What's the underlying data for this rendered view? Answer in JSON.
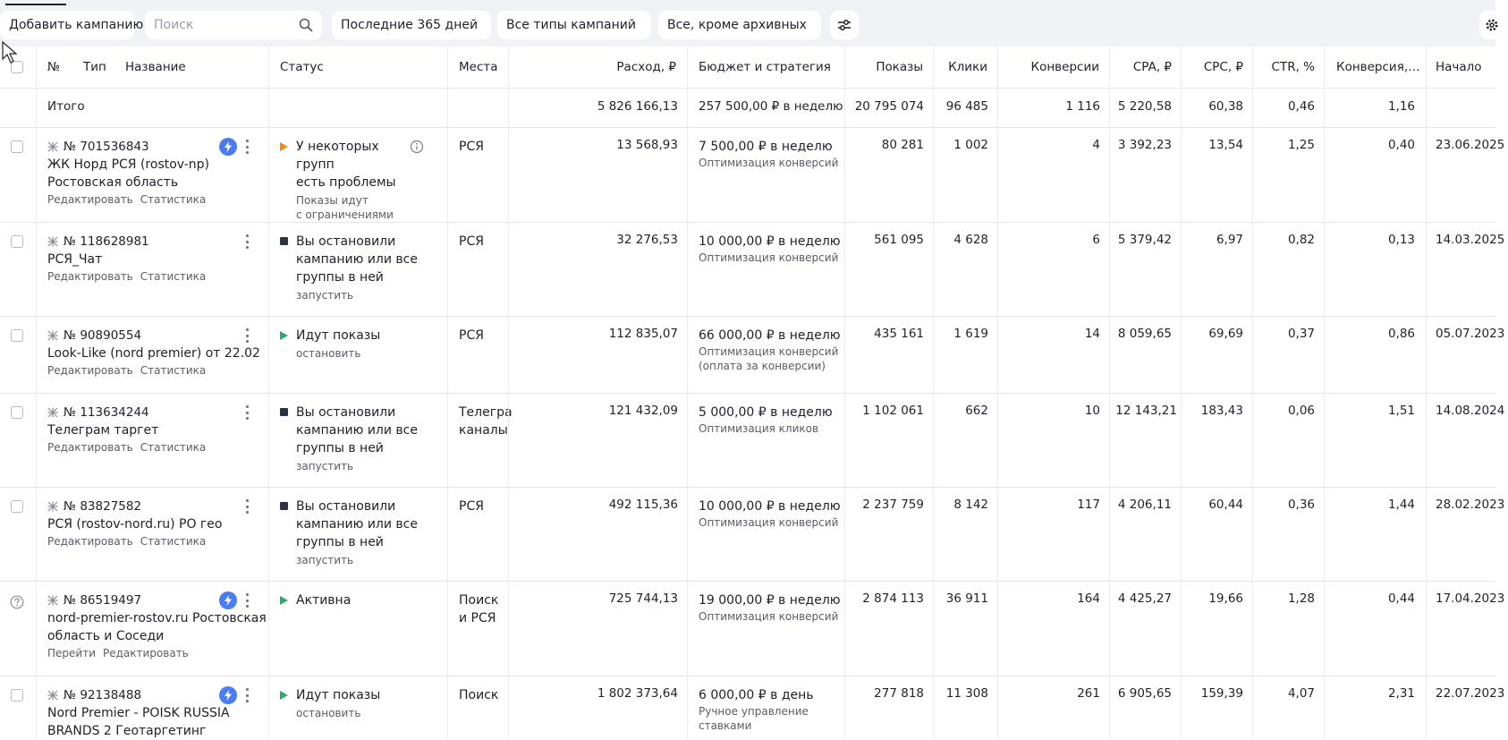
{
  "toolbar": {
    "add_campaign": "Добавить кампанию",
    "search_placeholder": "Поиск",
    "period": "Последние 365 дней",
    "types": "Все типы кампаний",
    "archive": "Все, кроме архивных"
  },
  "columns": {
    "num": "№",
    "type": "Тип",
    "name": "Название",
    "status": "Статус",
    "places": "Места",
    "spend": "Расход, ₽",
    "budget": "Бюджет и стратегия",
    "impressions": "Показы",
    "clicks": "Клики",
    "conversions": "Конверсии",
    "cpa": "CPA, ₽",
    "cpc": "CPC, ₽",
    "ctr": "CTR, %",
    "conv_rate": "Конверсия,…",
    "start": "Начало"
  },
  "totals": {
    "label": "Итого",
    "spend": "5 826 166,13",
    "budget": "257 500,00 ₽ в неделю",
    "impressions": "20 795 074",
    "clicks": "96 485",
    "conversions": "1 116",
    "cpa": "5 220,58",
    "cpc": "60,38",
    "ctr": "0,46",
    "conv_rate": "1,16"
  },
  "campaigns": [
    {
      "id": "№ 701536843",
      "title": [
        "ЖК Норд РСЯ (rostov-np)",
        "Ростовская область"
      ],
      "action1": "Редактировать",
      "action2": "Статистика",
      "status": [
        "У некоторых групп",
        "есть проблемы"
      ],
      "status_sub": [
        "Показы идут",
        "с ограничениями"
      ],
      "status_color": "#f08a1c",
      "places": [
        "РСЯ"
      ],
      "spend": "13 568,93",
      "budget": "7 500,00 ₽ в неделю",
      "strategy": [
        "Оптимизация конверсий"
      ],
      "impressions": "80 281",
      "clicks": "1 002",
      "conversions": "4",
      "cpa": "3 392,23",
      "cpc": "13,54",
      "ctr": "1,25",
      "conv_rate": "0,40",
      "start": "23.06.2025"
    },
    {
      "id": "№ 118628981",
      "title": [
        "РСЯ_Чат"
      ],
      "action1": "Редактировать",
      "action2": "Статистика",
      "status": [
        "Вы остановили",
        "кампанию или все",
        "группы в ней"
      ],
      "status_sub": [
        "запустить"
      ],
      "status_color": "#2d3344",
      "places": [
        "РСЯ"
      ],
      "spend": "32 276,53",
      "budget": "10 000,00 ₽ в неделю",
      "strategy": [
        "Оптимизация конверсий"
      ],
      "impressions": "561 095",
      "clicks": "4 628",
      "conversions": "6",
      "cpa": "5 379,42",
      "cpc": "6,97",
      "ctr": "0,82",
      "conv_rate": "0,13",
      "start": "14.03.2025"
    },
    {
      "id": "№ 90890554",
      "title": [
        "Look-Like (nord premier) от 22.02"
      ],
      "action1": "Редактировать",
      "action2": "Статистика",
      "status": [
        "Идут показы"
      ],
      "status_sub": [
        "остановить"
      ],
      "status_color": "#2bab6b",
      "places": [
        "РСЯ"
      ],
      "spend": "112 835,07",
      "budget": "66 000,00 ₽ в неделю",
      "strategy": [
        "Оптимизация конверсий",
        "(оплата за конверсии)"
      ],
      "impressions": "435 161",
      "clicks": "1 619",
      "conversions": "14",
      "cpa": "8 059,65",
      "cpc": "69,69",
      "ctr": "0,37",
      "conv_rate": "0,86",
      "start": "05.07.2023"
    },
    {
      "id": "№ 113634244",
      "title": [
        "Телеграм таргет"
      ],
      "action1": "Редактировать",
      "action2": "Статистика",
      "status": [
        "Вы остановили",
        "кампанию или все",
        "группы в ней"
      ],
      "status_sub": [
        "запустить"
      ],
      "status_color": "#2d3344",
      "places": [
        "Телегра",
        "каналы"
      ],
      "spend": "121 432,09",
      "budget": "5 000,00 ₽ в неделю",
      "strategy": [
        "Оптимизация кликов"
      ],
      "impressions": "1 102 061",
      "clicks": "662",
      "conversions": "10",
      "cpa": "12 143,21",
      "cpc": "183,43",
      "ctr": "0,06",
      "conv_rate": "1,51",
      "start": "14.08.2024"
    },
    {
      "id": "№ 83827582",
      "title": [
        "РСЯ (rostov-nord.ru) РО гео"
      ],
      "action1": "Редактировать",
      "action2": "Статистика",
      "status": [
        "Вы остановили",
        "кампанию или все",
        "группы в ней"
      ],
      "status_sub": [
        "запустить"
      ],
      "status_color": "#2d3344",
      "places": [
        "РСЯ"
      ],
      "spend": "492 115,36",
      "budget": "10 000,00 ₽ в неделю",
      "strategy": [
        "Оптимизация конверсий"
      ],
      "impressions": "2 237 759",
      "clicks": "8 142",
      "conversions": "117",
      "cpa": "4 206,11",
      "cpc": "60,44",
      "ctr": "0,36",
      "conv_rate": "1,44",
      "start": "28.02.2023"
    },
    {
      "id": "№ 86519497",
      "title": [
        "nord-premier-rostov.ru Ростовская",
        "область и Соседи"
      ],
      "action1": "Перейти",
      "action2": "Редактировать",
      "status": [
        "Активна"
      ],
      "status_sub": [],
      "status_color": "#2bab6b",
      "places": [
        "Поиск",
        "и РСЯ"
      ],
      "spend": "725 744,13",
      "budget": "19 000,00 ₽ в неделю",
      "strategy": [
        "Оптимизация конверсий"
      ],
      "impressions": "2 874 113",
      "clicks": "36 911",
      "conversions": "164",
      "cpa": "4 425,27",
      "cpc": "19,66",
      "ctr": "1,28",
      "conv_rate": "0,44",
      "start": "17.04.2023"
    },
    {
      "id": "№ 92138488",
      "title": [
        "Nord Premier - POISK RUSSIA",
        "BRANDS 2 Геотаргетинг"
      ],
      "action1": "",
      "action2": "",
      "status": [
        "Идут показы"
      ],
      "status_sub": [
        "остановить"
      ],
      "status_color": "#2bab6b",
      "places": [
        "Поиск"
      ],
      "spend": "1 802 373,64",
      "budget": "6 000,00 ₽ в день",
      "strategy": [
        "Ручное управление",
        "ставками"
      ],
      "impressions": "277 818",
      "clicks": "11 308",
      "conversions": "261",
      "cpa": "6 905,65",
      "cpc": "159,39",
      "ctr": "4,07",
      "conv_rate": "2,31",
      "start": "22.07.2023"
    }
  ]
}
